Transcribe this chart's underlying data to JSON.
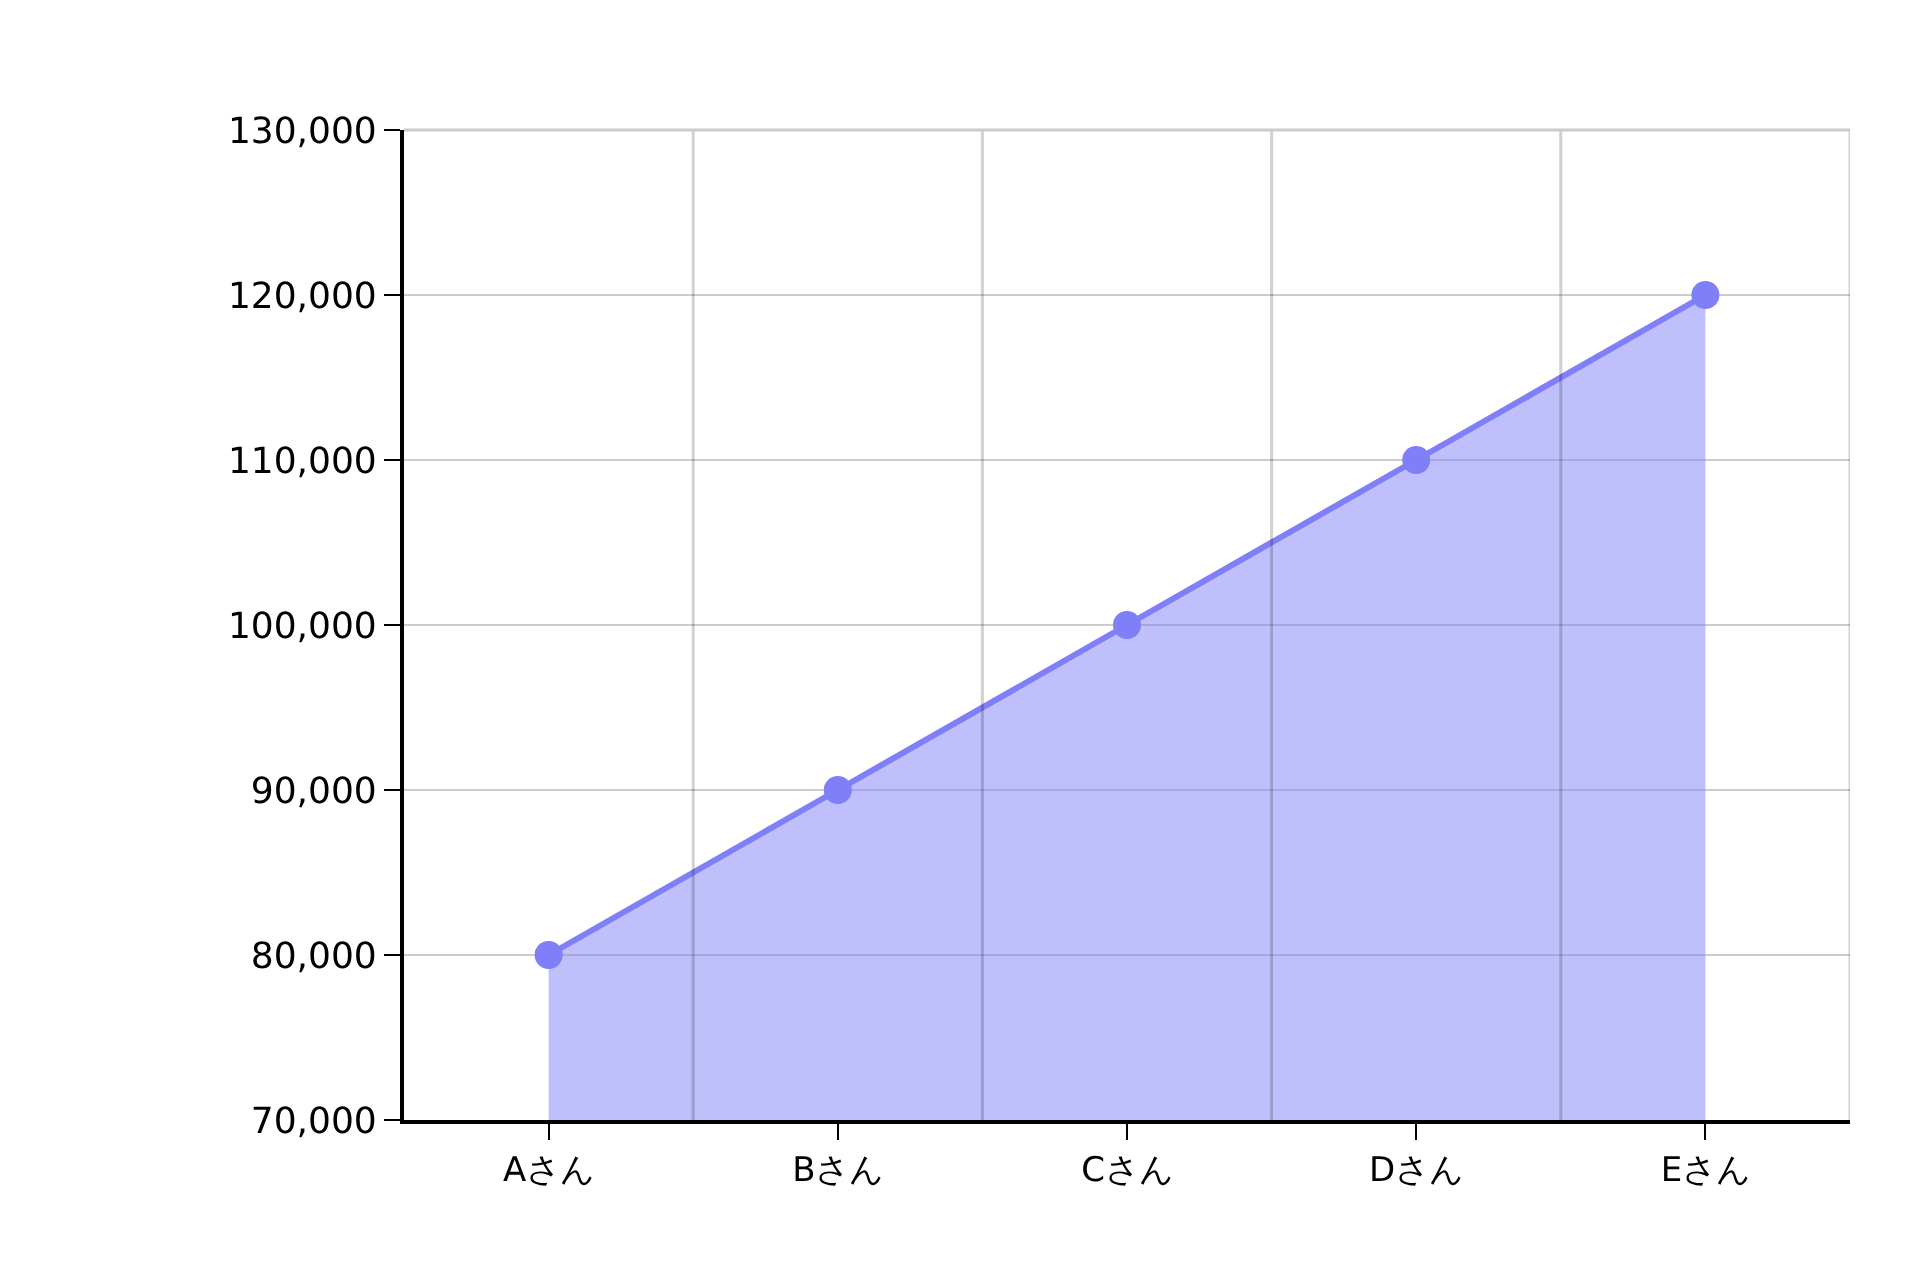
{
  "chart_data": {
    "type": "area",
    "categories": [
      "Aさん",
      "Bさん",
      "Cさん",
      "Dさん",
      "Eさん"
    ],
    "series": [
      {
        "color": "#7f7ff8",
        "values": [
          80000,
          90000,
          100000,
          110000,
          120000
        ]
      }
    ],
    "ylim": [
      70000,
      130000
    ],
    "yticks": [
      {
        "value": 70000,
        "label": "70,000"
      },
      {
        "value": 80000,
        "label": "80,000"
      },
      {
        "value": 90000,
        "label": "90,000"
      },
      {
        "value": 100000,
        "label": "100,000"
      },
      {
        "value": 110000,
        "label": "110,000"
      },
      {
        "value": 120000,
        "label": "120,000"
      },
      {
        "value": 130000,
        "label": "130,000"
      }
    ],
    "grid": true,
    "marker": "circle",
    "legend": false
  }
}
